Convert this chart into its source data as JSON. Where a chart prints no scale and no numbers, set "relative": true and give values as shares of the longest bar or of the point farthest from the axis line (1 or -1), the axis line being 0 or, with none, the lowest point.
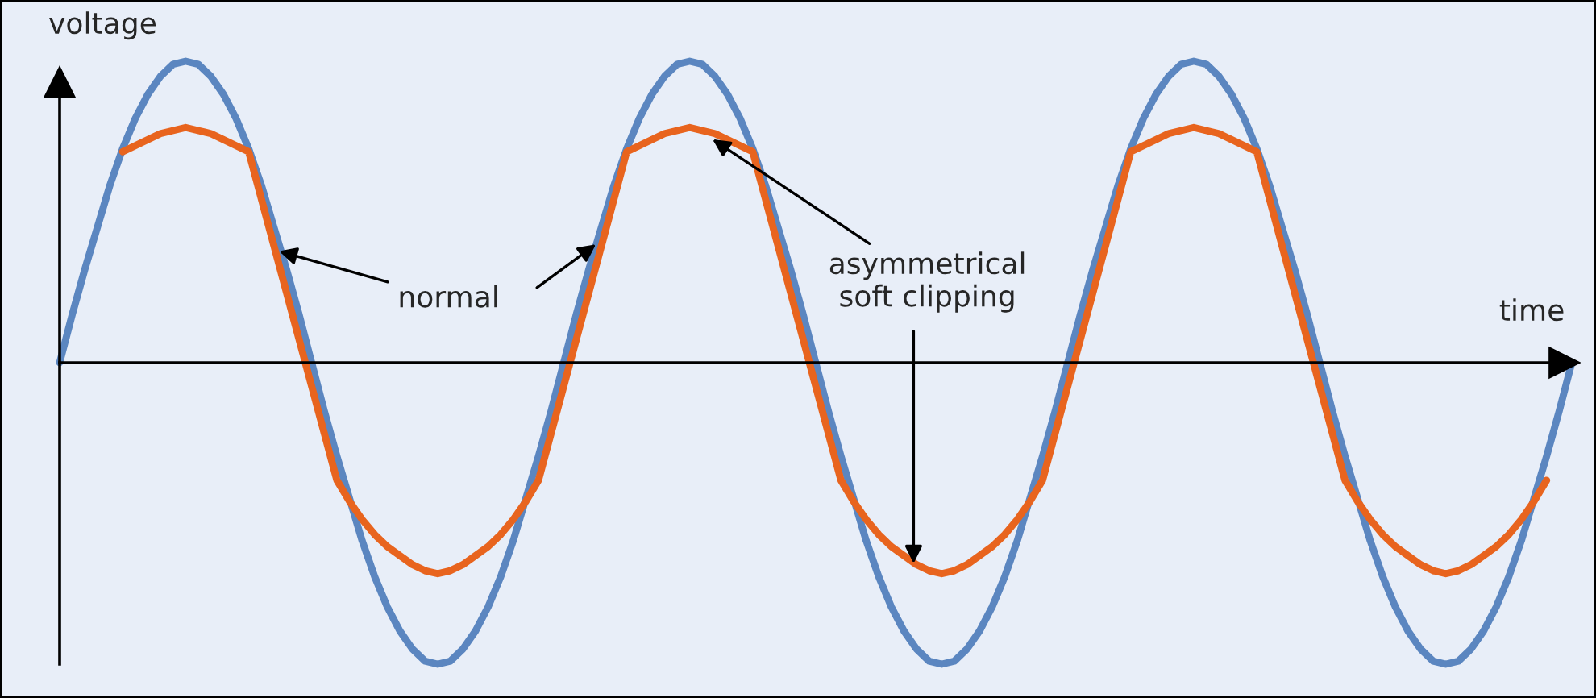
{
  "chart_data": {
    "type": "line",
    "relative": true,
    "xlabel": "time",
    "ylabel": "voltage",
    "categories": [
      null,
      null,
      null,
      null,
      null,
      null,
      null,
      null,
      null,
      null,
      null,
      null,
      null,
      null,
      null,
      null,
      null,
      null,
      null,
      null,
      null,
      null,
      null,
      null,
      null,
      null,
      null,
      null,
      null,
      null,
      null,
      null,
      null,
      null,
      null,
      null,
      null,
      null,
      null,
      null,
      null,
      null,
      null,
      null,
      null,
      null,
      null,
      null,
      null,
      null,
      null,
      null,
      null,
      null,
      null,
      null,
      null,
      null,
      null,
      null,
      null,
      null,
      null,
      null,
      null,
      null,
      null,
      null,
      null,
      null,
      null,
      null,
      null,
      null,
      null,
      null,
      null,
      null,
      null,
      null,
      null,
      null,
      null,
      null,
      null,
      null,
      null,
      null,
      null,
      null,
      null,
      null,
      null,
      null,
      null,
      null,
      null,
      null,
      null,
      null,
      null,
      null,
      null,
      null,
      null,
      null,
      null,
      null,
      null,
      null,
      null,
      null,
      null,
      null,
      null,
      null,
      null,
      null,
      null,
      null,
      null
    ],
    "series": [
      {
        "color": "#5b86c0",
        "values": [
          0,
          0.16,
          0.31,
          0.45,
          0.59,
          0.71,
          0.81,
          0.89,
          0.95,
          0.99,
          1,
          0.99,
          0.95,
          0.89,
          0.81,
          0.71,
          0.59,
          0.45,
          0.31,
          0.16,
          0,
          -0.16,
          -0.31,
          -0.45,
          -0.59,
          -0.71,
          -0.81,
          -0.89,
          -0.95,
          -0.99,
          -1,
          -0.99,
          -0.95,
          -0.89,
          -0.81,
          -0.71,
          -0.59,
          -0.45,
          -0.31,
          -0.16,
          0,
          0.16,
          0.31,
          0.45,
          0.59,
          0.71,
          0.81,
          0.89,
          0.95,
          0.99,
          1,
          0.99,
          0.95,
          0.89,
          0.81,
          0.71,
          0.59,
          0.45,
          0.31,
          0.16,
          0,
          -0.16,
          -0.31,
          -0.45,
          -0.59,
          -0.71,
          -0.81,
          -0.89,
          -0.95,
          -0.99,
          -1,
          -0.99,
          -0.95,
          -0.89,
          -0.81,
          -0.71,
          -0.59,
          -0.45,
          -0.31,
          -0.16,
          0,
          0.16,
          0.31,
          0.45,
          0.59,
          0.71,
          0.81,
          0.89,
          0.95,
          0.99,
          1,
          0.99,
          0.95,
          0.89,
          0.81,
          0.71,
          0.59,
          0.45,
          0.31,
          0.16,
          0,
          -0.16,
          -0.31,
          -0.45,
          -0.59,
          -0.71,
          -0.81,
          -0.89,
          -0.95,
          -0.99,
          -1,
          -0.99,
          -0.95,
          -0.89,
          -0.81,
          -0.71,
          -0.59,
          -0.45,
          -0.31,
          -0.16,
          0
        ]
      },
      {
        "color": "#e8641e",
        "values": [
          null,
          null,
          null,
          null,
          null,
          0.7,
          0.72,
          0.74,
          0.76,
          0.77,
          0.78,
          0.77,
          0.76,
          0.74,
          0.72,
          0.7,
          null,
          null,
          null,
          null,
          null,
          null,
          -0.39,
          -0.46,
          -0.52,
          -0.57,
          -0.61,
          -0.64,
          -0.67,
          -0.69,
          -0.7,
          -0.69,
          -0.67,
          -0.64,
          -0.61,
          -0.57,
          -0.52,
          -0.46,
          -0.39,
          null,
          null,
          null,
          null,
          null,
          null,
          0.7,
          0.72,
          0.74,
          0.76,
          0.77,
          0.78,
          0.77,
          0.76,
          0.74,
          0.72,
          0.7,
          null,
          null,
          null,
          null,
          null,
          null,
          -0.39,
          -0.46,
          -0.52,
          -0.57,
          -0.61,
          -0.64,
          -0.67,
          -0.69,
          -0.7,
          -0.69,
          -0.67,
          -0.64,
          -0.61,
          -0.57,
          -0.52,
          -0.46,
          -0.39,
          null,
          null,
          null,
          null,
          null,
          null,
          0.7,
          0.72,
          0.74,
          0.76,
          0.77,
          0.78,
          0.77,
          0.76,
          0.74,
          0.72,
          0.7,
          null,
          null,
          null,
          null,
          null,
          null,
          -0.39,
          -0.46,
          -0.52,
          -0.57,
          -0.61,
          -0.64,
          -0.67,
          -0.69,
          -0.7,
          -0.69,
          -0.67,
          -0.64,
          -0.61,
          -0.57,
          -0.52,
          -0.46,
          -0.39,
          null,
          null
        ]
      }
    ],
    "annotations": [
      "normal",
      "asymmetrical\nsoft clipping"
    ],
    "grid": false,
    "marker": "none",
    "line_style": "solid"
  }
}
